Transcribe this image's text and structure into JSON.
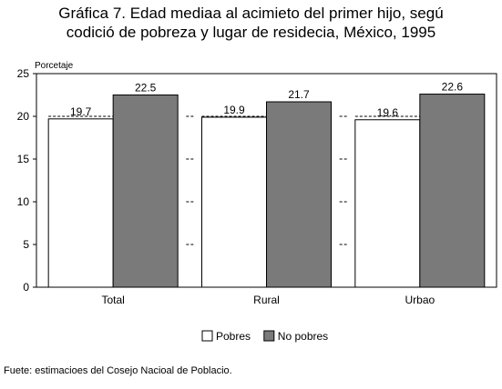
{
  "title_line1": "Gráfica 7. Edad mediaa al acimieto del primer hijo, segú",
  "title_line2": "codició de pobreza y lugar de residecia, México, 1995",
  "source": "Fuete: estimacioes del Cosejo Nacioal de Poblacio.",
  "chart_data": {
    "type": "bar",
    "title": "Gráfica 7. Edad mediaa al acimieto del primer hijo, segú codició de pobreza y lugar de residecia, México, 1995",
    "ylabel": "Porcetaje",
    "xlabel": "",
    "categories": [
      "Total",
      "Rural",
      "Urbao"
    ],
    "series": [
      {
        "name": "Pobres",
        "color": "#ffffff",
        "values": [
          19.7,
          19.9,
          19.6
        ]
      },
      {
        "name": "No pobres",
        "color": "#7a7a7a",
        "values": [
          22.5,
          21.7,
          22.6
        ]
      }
    ],
    "ylim": [
      0,
      25
    ],
    "yticks": [
      0,
      5,
      10,
      15,
      20,
      25
    ],
    "grid": false,
    "legend_position": "bottom-center",
    "data_labels": true
  }
}
